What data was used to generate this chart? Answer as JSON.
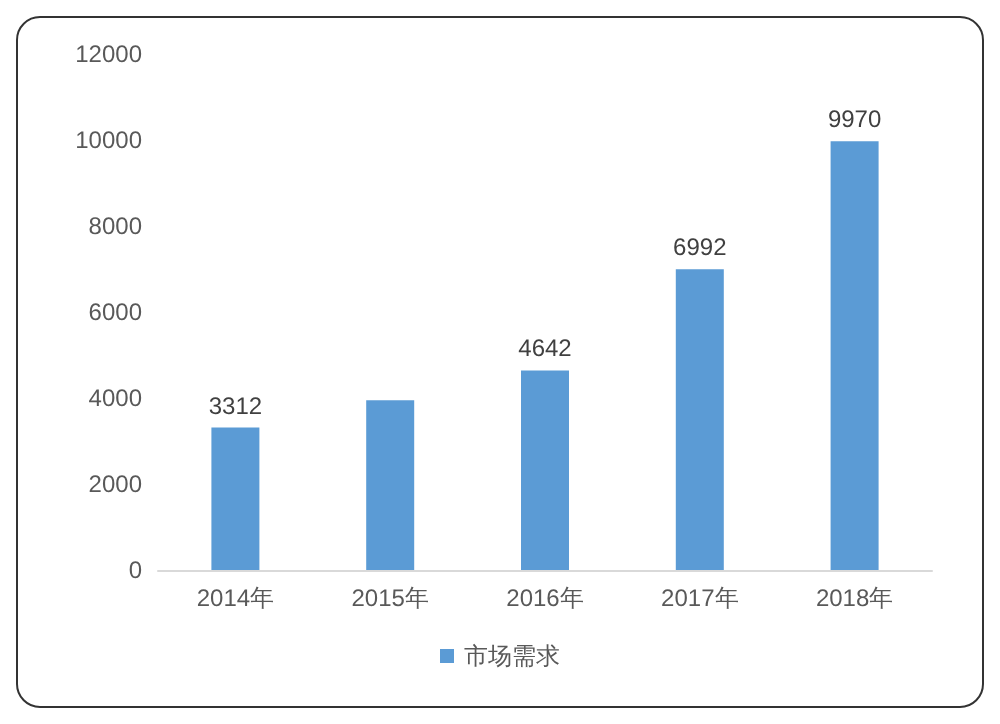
{
  "chart_data": {
    "type": "bar",
    "categories": [
      "2014年",
      "2015年",
      "2016年",
      "2017年",
      "2018年"
    ],
    "series": [
      {
        "name": "市场需求",
        "color": "#5b9bd5",
        "values": [
          3312,
          3950,
          4642,
          6992,
          9970
        ],
        "value_labels": [
          "3312",
          null,
          "4642",
          "6992",
          "9970"
        ]
      }
    ],
    "ylim": [
      0,
      12000
    ],
    "yticks": [
      0,
      2000,
      4000,
      6000,
      8000,
      10000,
      12000
    ],
    "grid": false,
    "legend": "bottom"
  }
}
